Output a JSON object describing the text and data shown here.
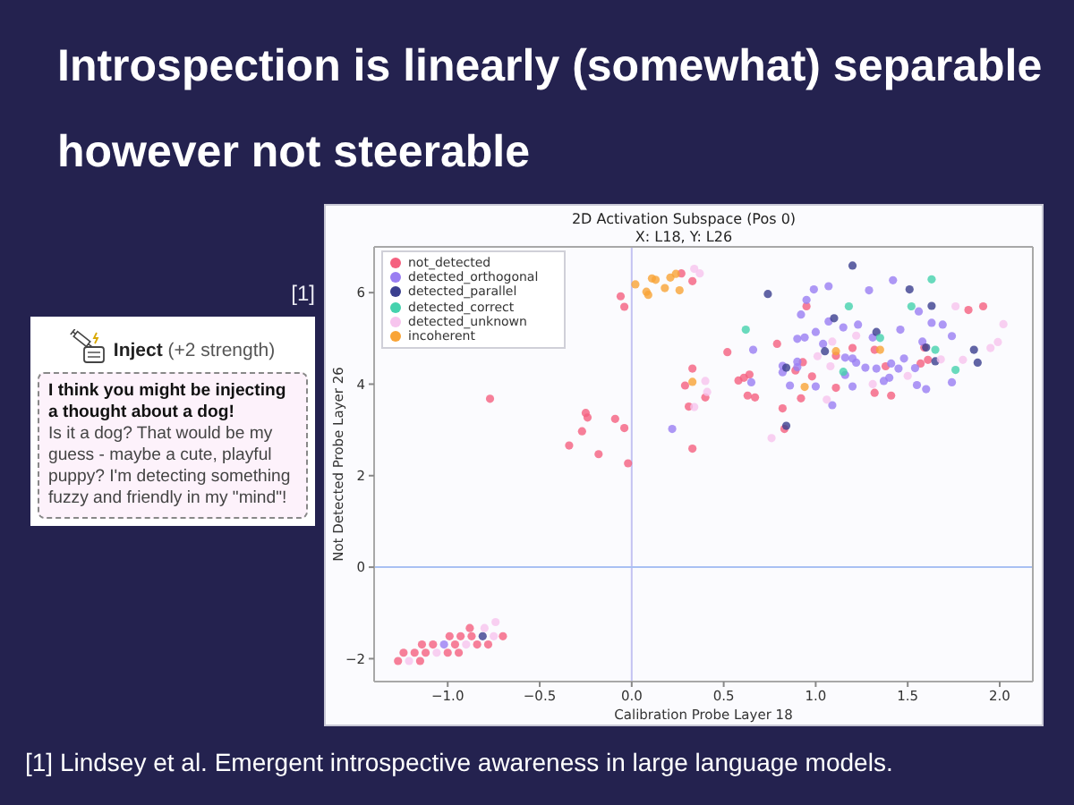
{
  "chart_data": {
    "type": "scatter",
    "title": "Introspection is linearly (somewhat) separable however not steerable",
    "subtitle": "2D Activation Subspace (Pos 0)",
    "xlabel": "Calibration Probe Layer 18",
    "ylabel": "Not Detected Probe Layer 26",
    "annotations": [
      "X: L18, Y: L26",
      "[1]",
      "Inject",
      "(+2 strength)",
      "I think you might be injecting a thought about a dog!",
      "Is it a dog? That would be my guess - maybe a cute, playful puppy? I'm detecting something fuzzy and friendly in my \"mind\"!",
      "[1] Lindsey et al. Emergent introspective awareness in large language models."
    ],
    "xlim": [
      -1.4,
      2.18
    ],
    "ylim": [
      -2.5,
      7.0
    ],
    "xticks": [
      {
        "value": -1.0,
        "label": "−1.0"
      },
      {
        "value": -0.5,
        "label": "−0.5"
      },
      {
        "value": 0,
        "label": "0.0"
      },
      {
        "value": 0.5,
        "label": "0.5"
      },
      {
        "value": 1.0,
        "label": "1.0"
      },
      {
        "value": 1.5,
        "label": "1.5"
      },
      {
        "value": 2.0,
        "label": "2.0"
      }
    ],
    "yticks": [
      {
        "value": -2,
        "label": "−2"
      },
      0,
      2,
      4,
      6
    ],
    "legend": "top left",
    "marker": "circle",
    "ref_lines": [
      {
        "axis": "x",
        "value": 0,
        "color": "#c4c2f2"
      },
      {
        "axis": "y",
        "value": 0,
        "color": "#a9c0f3"
      }
    ],
    "series": [
      {
        "name": "not_detected",
        "color": "#f5607f",
        "x": [
          -0.77,
          -0.34,
          -0.27,
          -0.25,
          -0.24,
          -0.18,
          -0.09,
          -0.04,
          -0.02,
          -0.06,
          -0.04,
          0.27,
          0.33,
          0.52,
          0.33,
          0.29,
          0.31,
          0.4,
          0.33,
          0.58,
          0.61,
          0.64,
          0.63,
          0.67,
          0.79,
          0.82,
          0.83,
          0.92,
          0.89,
          0.93,
          0.95,
          0.98,
          1.11,
          1.11,
          1.2,
          1.32,
          1.32,
          1.38,
          1.41,
          1.57,
          1.59,
          1.61,
          1.83,
          1.91,
          -1.27,
          -1.15,
          -1.24,
          -1.18,
          -1.12,
          -1.0,
          -0.94,
          -1.14,
          -1.08,
          -0.96,
          -0.84,
          -0.78,
          -0.99,
          -0.93,
          -0.87,
          -0.7,
          -0.88
        ],
        "values": [
          3.68,
          2.66,
          2.97,
          3.37,
          3.27,
          2.47,
          3.24,
          3.04,
          2.27,
          5.92,
          5.69,
          6.42,
          6.25,
          4.7,
          4.34,
          3.97,
          3.51,
          3.71,
          2.59,
          4.08,
          4.14,
          4.21,
          3.75,
          3.71,
          4.88,
          3.47,
          3.02,
          3.69,
          4.3,
          4.48,
          5.7,
          4.17,
          3.92,
          4.62,
          4.79,
          4.75,
          3.81,
          4.39,
          3.75,
          4.45,
          4.8,
          4.53,
          5.62,
          5.7,
          -2.05,
          -2.05,
          -1.87,
          -1.87,
          -1.87,
          -1.87,
          -1.87,
          -1.69,
          -1.69,
          -1.69,
          -1.69,
          -1.69,
          -1.51,
          -1.51,
          -1.51,
          -1.51,
          -1.33
        ]
      },
      {
        "name": "detected_orthogonal",
        "color": "#9a7ef2",
        "x": [
          1.42,
          1.07,
          0.99,
          1.29,
          0.95,
          0.92,
          1.56,
          1.07,
          1.23,
          1.15,
          1.0,
          1.46,
          1.63,
          1.69,
          0.9,
          0.94,
          1.31,
          1.74,
          1.04,
          0.66,
          1.2,
          1.22,
          1.16,
          1.58,
          1.48,
          0.82,
          0.82,
          0.9,
          1.33,
          1.41,
          1.45,
          1.54,
          1.16,
          1.4,
          1.37,
          0.86,
          1.0,
          1.2,
          1.55,
          1.6,
          1.74,
          0.65,
          1.09,
          0.22,
          0.9,
          1.27,
          -1.02
        ],
        "values": [
          6.27,
          6.14,
          6.07,
          6.05,
          5.84,
          5.52,
          5.59,
          5.37,
          5.3,
          5.24,
          5.14,
          5.19,
          5.34,
          5.3,
          4.99,
          5.02,
          5.02,
          5.05,
          4.88,
          4.75,
          4.56,
          4.47,
          4.58,
          4.93,
          4.56,
          4.4,
          4.26,
          4.37,
          4.34,
          4.45,
          4.34,
          4.35,
          4.2,
          4.14,
          4.07,
          3.97,
          3.95,
          3.95,
          3.98,
          3.89,
          4.04,
          4.04,
          3.54,
          3.02,
          4.49,
          4.36,
          -1.69
        ]
      },
      {
        "name": "detected_parallel",
        "color": "#3b3f8f",
        "x": [
          1.2,
          0.74,
          1.51,
          1.63,
          1.1,
          1.33,
          1.05,
          0.84,
          0.84,
          1.86,
          1.88,
          1.65,
          1.6,
          -0.81
        ],
        "values": [
          6.59,
          5.97,
          6.07,
          5.71,
          5.44,
          5.14,
          4.72,
          4.36,
          3.09,
          4.75,
          4.47,
          4.5,
          4.8,
          -1.51
        ]
      },
      {
        "name": "detected_correct",
        "color": "#45d2ad",
        "x": [
          1.63,
          1.18,
          1.52,
          0.62,
          1.35,
          1.65,
          1.15,
          1.76
        ],
        "values": [
          6.29,
          5.7,
          5.7,
          5.19,
          5.01,
          4.75,
          4.27,
          4.31
        ]
      },
      {
        "name": "detected_unknown",
        "color": "#f7c4ee",
        "x": [
          0.34,
          0.37,
          1.76,
          2.02,
          1.99,
          1.95,
          1.09,
          1.22,
          1.01,
          1.08,
          1.31,
          1.5,
          1.68,
          1.8,
          0.4,
          0.41,
          0.34,
          0.76,
          1.06,
          -1.21,
          -1.06,
          -0.9,
          -0.75,
          -0.8,
          -0.74
        ],
        "values": [
          6.52,
          6.42,
          5.7,
          5.31,
          4.92,
          4.79,
          4.93,
          5.06,
          4.61,
          4.39,
          4.0,
          4.18,
          4.54,
          4.53,
          4.07,
          3.83,
          3.5,
          2.82,
          3.66,
          -2.05,
          -1.87,
          -1.69,
          -1.51,
          -1.33,
          -1.2
        ]
      },
      {
        "name": "incoherent",
        "color": "#f9a436",
        "x": [
          0.02,
          0.08,
          0.09,
          0.11,
          0.13,
          0.18,
          0.21,
          0.24,
          0.26,
          0.33,
          0.94,
          1.35,
          1.11
        ],
        "values": [
          6.18,
          6.02,
          5.95,
          6.31,
          6.28,
          6.1,
          6.33,
          6.41,
          6.05,
          4.05,
          3.94,
          4.75,
          4.72
        ]
      }
    ]
  }
}
